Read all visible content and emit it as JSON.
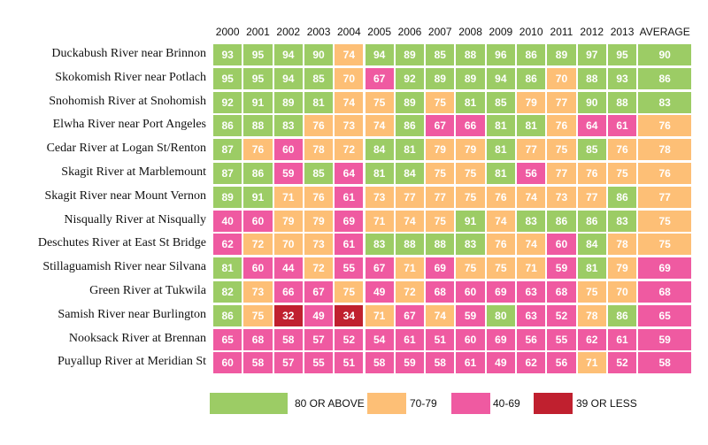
{
  "chart_data": {
    "type": "heatmap",
    "columns": [
      "2000",
      "2001",
      "2002",
      "2003",
      "2004",
      "2005",
      "2006",
      "2007",
      "2008",
      "2009",
      "2010",
      "2011",
      "2012",
      "2013",
      "AVERAGE"
    ],
    "rows": [
      {
        "label": "Duckabush River near Brinnon",
        "values": [
          93,
          95,
          94,
          90,
          74,
          94,
          89,
          85,
          88,
          96,
          86,
          89,
          97,
          95,
          90
        ]
      },
      {
        "label": "Skokomish River near Potlach",
        "values": [
          95,
          95,
          94,
          85,
          70,
          67,
          92,
          89,
          89,
          94,
          86,
          70,
          88,
          93,
          86
        ]
      },
      {
        "label": "Snohomish River at Snohomish",
        "values": [
          92,
          91,
          89,
          81,
          74,
          75,
          89,
          75,
          81,
          85,
          79,
          77,
          90,
          88,
          83
        ]
      },
      {
        "label": "Elwha River near Port Angeles",
        "values": [
          86,
          88,
          83,
          76,
          73,
          74,
          86,
          67,
          66,
          81,
          81,
          76,
          64,
          61,
          76
        ]
      },
      {
        "label": "Cedar River at Logan St/Renton",
        "values": [
          87,
          76,
          60,
          78,
          72,
          84,
          81,
          79,
          79,
          81,
          77,
          75,
          85,
          76,
          78
        ]
      },
      {
        "label": "Skagit River at Marblemount",
        "values": [
          87,
          86,
          59,
          85,
          64,
          81,
          84,
          75,
          75,
          81,
          56,
          77,
          76,
          75,
          76
        ]
      },
      {
        "label": "Skagit River near Mount Vernon",
        "values": [
          89,
          91,
          71,
          76,
          61,
          73,
          77,
          77,
          75,
          76,
          74,
          73,
          77,
          86,
          77
        ]
      },
      {
        "label": "Nisqually River at Nisqually",
        "values": [
          40,
          60,
          79,
          79,
          69,
          71,
          74,
          75,
          91,
          74,
          83,
          86,
          86,
          83,
          75
        ]
      },
      {
        "label": "Deschutes River at East St Bridge",
        "values": [
          62,
          72,
          70,
          73,
          61,
          83,
          88,
          88,
          83,
          76,
          74,
          60,
          84,
          78,
          75
        ]
      },
      {
        "label": "Stillaguamish River near Silvana",
        "values": [
          81,
          60,
          44,
          72,
          55,
          67,
          71,
          69,
          75,
          75,
          71,
          59,
          81,
          79,
          69
        ]
      },
      {
        "label": "Green River at Tukwila",
        "values": [
          82,
          73,
          66,
          67,
          75,
          49,
          72,
          68,
          60,
          69,
          63,
          68,
          75,
          70,
          68
        ]
      },
      {
        "label": "Samish River near Burlington",
        "values": [
          86,
          75,
          32,
          49,
          34,
          71,
          67,
          74,
          59,
          80,
          63,
          52,
          78,
          86,
          65
        ]
      },
      {
        "label": "Nooksack River at Brennan",
        "values": [
          65,
          68,
          58,
          57,
          52,
          54,
          61,
          51,
          60,
          69,
          56,
          55,
          62,
          61,
          59
        ]
      },
      {
        "label": "Puyallup River at Meridian St",
        "values": [
          60,
          58,
          57,
          55,
          51,
          58,
          59,
          58,
          61,
          49,
          62,
          56,
          71,
          52,
          58
        ]
      }
    ],
    "bins": [
      {
        "label": "80 OR ABOVE",
        "min": 80,
        "max": 100,
        "color": "#9ccc65"
      },
      {
        "label": "70-79",
        "min": 70,
        "max": 79,
        "color": "#fdbf76"
      },
      {
        "label": "40-69",
        "min": 40,
        "max": 69,
        "color": "#ef5aa1"
      },
      {
        "label": "39 OR LESS",
        "min": 0,
        "max": 39,
        "color": "#c0202f"
      }
    ]
  }
}
